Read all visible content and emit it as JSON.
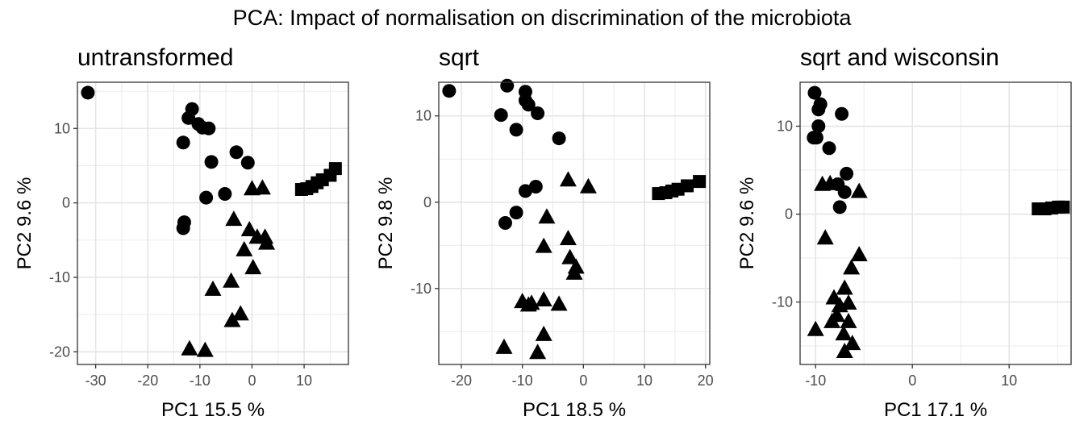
{
  "figure": {
    "suptitle": "PCA: Impact of normalisation on discrimination of the microbiota"
  },
  "chart_data": [
    {
      "type": "scatter",
      "title": "untransformed",
      "xlabel": "PC1 15.5 %",
      "ylabel": "PC2 9.6 %",
      "xlim": [
        -33.5,
        18.5
      ],
      "ylim": [
        -21.7,
        16.2
      ],
      "xticks": [
        -30,
        -20,
        -10,
        0,
        10
      ],
      "xtick_labels": [
        "-30",
        "-20",
        "-10",
        "0",
        "10"
      ],
      "yticks": [
        -20,
        -10,
        0,
        10
      ],
      "ytick_labels": [
        "-20",
        "-10",
        "0",
        "10"
      ],
      "grid": true,
      "series": [
        {
          "marker": "circle",
          "points": [
            [
              -31.5,
              14.8
            ],
            [
              -11.5,
              12.6
            ],
            [
              -12.2,
              11.4
            ],
            [
              -10.3,
              10.6
            ],
            [
              -9.5,
              10.1
            ],
            [
              -8.3,
              10.0
            ],
            [
              -13.2,
              8.1
            ],
            [
              -3.0,
              6.8
            ],
            [
              -7.8,
              5.5
            ],
            [
              -0.8,
              5.4
            ],
            [
              -5.2,
              1.2
            ],
            [
              -8.8,
              0.7
            ],
            [
              -13.0,
              -2.6
            ],
            [
              -13.2,
              -3.4
            ]
          ]
        },
        {
          "marker": "triangle",
          "points": [
            [
              0.0,
              1.8
            ],
            [
              2.0,
              1.9
            ],
            [
              -3.5,
              -2.3
            ],
            [
              -0.5,
              -3.7
            ],
            [
              1.0,
              -4.7
            ],
            [
              2.5,
              -4.7
            ],
            [
              2.8,
              -5.5
            ],
            [
              -1.5,
              -6.4
            ],
            [
              0.2,
              -8.8
            ],
            [
              -4.0,
              -10.6
            ],
            [
              -7.5,
              -11.7
            ],
            [
              -2.2,
              -15.0
            ],
            [
              -3.8,
              -15.9
            ],
            [
              -12.0,
              -19.7
            ],
            [
              -9.0,
              -19.9
            ]
          ]
        },
        {
          "marker": "square",
          "points": [
            [
              9.5,
              1.8
            ],
            [
              10.5,
              1.9
            ],
            [
              11.5,
              2.2
            ],
            [
              12.5,
              2.7
            ],
            [
              13.5,
              3.1
            ],
            [
              15.0,
              3.7
            ],
            [
              16.0,
              4.6
            ]
          ]
        }
      ]
    },
    {
      "type": "scatter",
      "title": "sqrt",
      "xlabel": "PC1 18.5 %",
      "ylabel": "PC2 9.8 %",
      "xlim": [
        -23.7,
        20.7
      ],
      "ylim": [
        -18.8,
        13.9
      ],
      "xticks": [
        -20,
        -10,
        0,
        10,
        20
      ],
      "xtick_labels": [
        "-20",
        "-10",
        "0",
        "10",
        "20"
      ],
      "yticks": [
        -10,
        0,
        10
      ],
      "ytick_labels": [
        "-10",
        "0",
        "10"
      ],
      "grid": true,
      "series": [
        {
          "marker": "circle",
          "points": [
            [
              -22.0,
              12.9
            ],
            [
              -12.5,
              13.5
            ],
            [
              -9.5,
              12.8
            ],
            [
              -9.5,
              11.8
            ],
            [
              -9.0,
              11.3
            ],
            [
              -13.5,
              10.1
            ],
            [
              -7.5,
              10.3
            ],
            [
              -11.0,
              8.4
            ],
            [
              -4.0,
              7.4
            ],
            [
              -9.5,
              1.3
            ],
            [
              -7.8,
              1.8
            ],
            [
              -11.0,
              -1.2
            ],
            [
              -12.8,
              -2.4
            ]
          ]
        },
        {
          "marker": "triangle",
          "points": [
            [
              -2.5,
              2.5
            ],
            [
              0.8,
              1.7
            ],
            [
              -6.0,
              -1.8
            ],
            [
              -2.5,
              -4.3
            ],
            [
              -6.5,
              -5.2
            ],
            [
              -2.2,
              -6.5
            ],
            [
              -1.2,
              -7.6
            ],
            [
              -1.5,
              -8.3
            ],
            [
              -10.0,
              -11.6
            ],
            [
              -8.5,
              -11.8
            ],
            [
              -6.5,
              -11.4
            ],
            [
              -9.0,
              -12.0
            ],
            [
              -4.0,
              -11.9
            ],
            [
              -6.5,
              -15.4
            ],
            [
              -13.0,
              -16.9
            ],
            [
              -7.5,
              -17.5
            ]
          ]
        },
        {
          "marker": "square",
          "points": [
            [
              12.3,
              1.0
            ],
            [
              13.5,
              1.1
            ],
            [
              14.5,
              1.3
            ],
            [
              15.5,
              1.5
            ],
            [
              17.0,
              1.9
            ],
            [
              19.0,
              2.4
            ]
          ]
        }
      ]
    },
    {
      "type": "scatter",
      "title": "sqrt and wisconsin",
      "xlabel": "PC1 17.1 %",
      "ylabel": "PC2 9.6 %",
      "xlim": [
        -11.6,
        16.4
      ],
      "ylim": [
        -17.1,
        15.0
      ],
      "xticks": [
        -10,
        0,
        10
      ],
      "xtick_labels": [
        "-10",
        "0",
        "10"
      ],
      "yticks": [
        -10,
        0,
        10
      ],
      "ytick_labels": [
        "-10",
        "0",
        "10"
      ],
      "grid": true,
      "series": [
        {
          "marker": "circle",
          "points": [
            [
              -10.1,
              13.8
            ],
            [
              -9.5,
              12.5
            ],
            [
              -9.7,
              11.9
            ],
            [
              -7.3,
              11.4
            ],
            [
              -9.7,
              10.0
            ],
            [
              -10.2,
              8.7
            ],
            [
              -9.9,
              8.7
            ],
            [
              -8.6,
              7.5
            ],
            [
              -6.8,
              4.6
            ],
            [
              -7.7,
              3.4
            ],
            [
              -7.0,
              2.5
            ],
            [
              -7.5,
              0.8
            ]
          ]
        },
        {
          "marker": "triangle",
          "points": [
            [
              -9.3,
              3.3
            ],
            [
              -8.5,
              3.4
            ],
            [
              -5.5,
              2.5
            ],
            [
              -9.0,
              -2.8
            ],
            [
              -5.5,
              -4.7
            ],
            [
              -6.3,
              -6.2
            ],
            [
              -7.0,
              -8.5
            ],
            [
              -8.1,
              -9.6
            ],
            [
              -7.5,
              -10.5
            ],
            [
              -6.6,
              -10.2
            ],
            [
              -7.8,
              -11.6
            ],
            [
              -8.3,
              -12.3
            ],
            [
              -6.6,
              -12.3
            ],
            [
              -10.0,
              -13.2
            ],
            [
              -7.1,
              -13.7
            ],
            [
              -6.2,
              -14.8
            ],
            [
              -7.0,
              -15.7
            ]
          ]
        },
        {
          "marker": "square",
          "points": [
            [
              13.0,
              0.6
            ],
            [
              13.7,
              0.6
            ],
            [
              14.4,
              0.7
            ],
            [
              15.1,
              0.8
            ],
            [
              15.6,
              0.8
            ]
          ]
        }
      ]
    }
  ]
}
